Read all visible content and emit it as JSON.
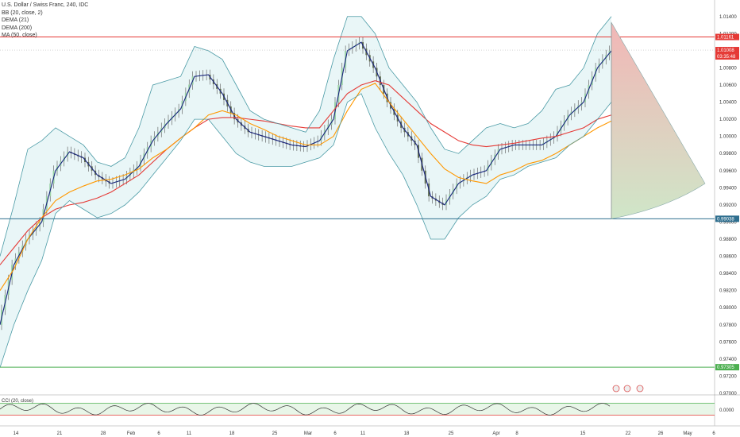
{
  "chart_data": {
    "type": "line",
    "title": "U.S. Dollar / Swiss Franc, 240, IDC",
    "legend": [
      "U.S. Dollar / Swiss Franc, 240, IDC",
      "BB (20, close, 2)",
      "DEMA (21)",
      "DEMA (200)",
      "MA (50, close)"
    ],
    "ylim": [
      0.97,
      1.015
    ],
    "yticks": [
      1.014,
      1.012,
      1.01,
      1.008,
      1.006,
      1.004,
      1.002,
      1.0,
      0.998,
      0.996,
      0.994,
      0.992,
      0.99,
      0.988,
      0.986,
      0.984,
      0.982,
      0.98,
      0.978,
      0.976,
      0.974,
      0.972,
      0.97
    ],
    "ytick_labels": [
      "1.01400",
      "1.01200",
      "1.01000",
      "1.00800",
      "1.00600",
      "1.00400",
      "1.00200",
      "1.00000",
      "0.99800",
      "0.99600",
      "0.99400",
      "0.99200",
      "0.99000",
      "0.98800",
      "0.98600",
      "0.98400",
      "0.98200",
      "0.98000",
      "0.97800",
      "0.97600",
      "0.97400",
      "0.97200",
      "0.97000"
    ],
    "x_tick_labels": [
      "14",
      "21",
      "28",
      "Feb",
      "6",
      "11",
      "18",
      "25",
      "Mar",
      "6",
      "11",
      "18",
      "25",
      "Apr",
      "8",
      "15",
      "22",
      "26",
      "May",
      "6"
    ],
    "horizontal_levels": [
      {
        "price": 1.01161,
        "label": "1.01161",
        "color": "#e53935"
      },
      {
        "price": 1.01008,
        "label": "1.01008",
        "color": "#e53935"
      },
      {
        "price": 0.99038,
        "label": "0.99038",
        "color": "#2f6f8f"
      },
      {
        "price": 0.97305,
        "label": "0.97305",
        "color": "#4caf50"
      }
    ],
    "countdown": "03:35:48",
    "series": [
      {
        "name": "DEMA (21)",
        "color": "#1a237e",
        "values": [
          0.978,
          0.985,
          0.988,
          0.99,
          0.996,
          0.9982,
          0.9975,
          0.9955,
          0.9945,
          0.995,
          0.9965,
          0.9995,
          1.0015,
          1.0032,
          1.007,
          1.0072,
          1.005,
          1.002,
          1.0005,
          1.0,
          0.9995,
          0.999,
          0.9988,
          0.9995,
          1.002,
          1.01,
          1.011,
          1.008,
          1.004,
          1.001,
          0.999,
          0.993,
          0.992,
          0.9945,
          0.9955,
          0.996,
          0.9985,
          0.999,
          0.999,
          0.999,
          1.0,
          1.0025,
          1.004,
          1.008,
          1.01
        ]
      },
      {
        "name": "DEMA (200)",
        "color": "#e53935",
        "values": [
          0.985,
          0.987,
          0.989,
          0.9905,
          0.9915,
          0.992,
          0.9923,
          0.9928,
          0.9935,
          0.9945,
          0.9955,
          0.997,
          0.9985,
          0.9998,
          1.001,
          1.002,
          1.0022,
          1.0022,
          1.002,
          1.0018,
          1.0015,
          1.0012,
          1.001,
          1.001,
          1.003,
          1.005,
          1.006,
          1.0065,
          1.006,
          1.0045,
          1.003,
          1.0015,
          1.0005,
          0.9995,
          0.999,
          0.9988,
          0.999,
          0.9992,
          0.9995,
          0.9998,
          1.0,
          1.0005,
          1.001,
          1.002,
          1.0025
        ]
      },
      {
        "name": "MA (50, close)",
        "color": "#ff9800",
        "values": [
          0.982,
          0.9845,
          0.988,
          0.9905,
          0.9925,
          0.9935,
          0.9942,
          0.9948,
          0.995,
          0.9955,
          0.9962,
          0.9975,
          0.9985,
          0.9998,
          1.001,
          1.0025,
          1.003,
          1.0025,
          1.0015,
          1.0008,
          1.0,
          0.9995,
          0.999,
          0.999,
          1.0,
          1.003,
          1.0055,
          1.0062,
          1.004,
          1.002,
          1.0,
          0.998,
          0.9962,
          0.9952,
          0.9948,
          0.9945,
          0.9955,
          0.996,
          0.9968,
          0.9972,
          0.998,
          0.999,
          1.0,
          1.001,
          1.0018
        ]
      },
      {
        "name": "BB (20, close, 2) upper",
        "color": "#4a9aa5",
        "values": [
          0.986,
          0.992,
          0.9985,
          0.9995,
          1.001,
          1.0,
          0.999,
          0.997,
          0.9965,
          0.9975,
          1.001,
          1.006,
          1.0065,
          1.007,
          1.0105,
          1.01,
          1.009,
          1.006,
          1.003,
          1.002,
          1.0015,
          1.001,
          1.0005,
          1.003,
          1.009,
          1.014,
          1.014,
          1.012,
          1.008,
          1.006,
          1.004,
          1.001,
          0.9985,
          0.998,
          0.9995,
          1.001,
          1.0015,
          1.001,
          1.0015,
          1.003,
          1.0055,
          1.006,
          1.008,
          1.012,
          1.014
        ]
      },
      {
        "name": "BB (20, close, 2) lower",
        "color": "#4a9aa5",
        "values": [
          0.973,
          0.978,
          0.982,
          0.9855,
          0.991,
          0.9925,
          0.9915,
          0.9905,
          0.991,
          0.992,
          0.9935,
          0.9955,
          0.9975,
          0.9995,
          1.002,
          1.002,
          1.0,
          0.998,
          0.997,
          0.9965,
          0.9965,
          0.9965,
          0.997,
          0.9975,
          0.999,
          1.004,
          1.005,
          1.001,
          0.998,
          0.9955,
          0.992,
          0.988,
          0.988,
          0.9905,
          0.992,
          0.993,
          0.995,
          0.9955,
          0.9965,
          0.997,
          0.9975,
          0.999,
          1.0,
          1.002,
          1.004
        ]
      }
    ],
    "cci": {
      "label": "CCI (20, close)",
      "ylim": [
        -200,
        200
      ],
      "bands": [
        100,
        -100
      ],
      "tick_label": "0.0000"
    }
  }
}
